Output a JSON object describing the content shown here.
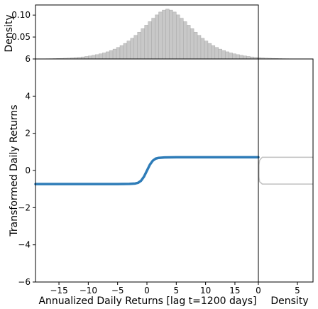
{
  "chart_data": [
    {
      "panel": "top-marginal",
      "type": "bar",
      "description_of_shape": "histogram of annualized daily returns",
      "xlim": [
        -19,
        19
      ],
      "ylim": [
        0,
        0.123
      ],
      "ylabel": "Density",
      "yticks": [
        0.05,
        0.1
      ],
      "ytick_labels": [
        "0.05",
        "0.10"
      ],
      "bar_fill": "#c8c8c8",
      "bar_edge": "#a0a0a0",
      "bars": {
        "bin_start": -19,
        "bin_width": 0.6,
        "values": [
          0.0003,
          0.0004,
          0.0005,
          0.0006,
          0.0007,
          0.0009,
          0.0011,
          0.0014,
          0.0017,
          0.0021,
          0.0026,
          0.0032,
          0.0039,
          0.0047,
          0.0057,
          0.0069,
          0.0083,
          0.0099,
          0.0117,
          0.0138,
          0.0163,
          0.0192,
          0.0225,
          0.0263,
          0.0306,
          0.0355,
          0.041,
          0.0471,
          0.0538,
          0.0612,
          0.069,
          0.077,
          0.085,
          0.093,
          0.1005,
          0.107,
          0.1115,
          0.1135,
          0.1115,
          0.107,
          0.1005,
          0.093,
          0.085,
          0.077,
          0.069,
          0.0612,
          0.0538,
          0.0471,
          0.041,
          0.0355,
          0.0306,
          0.0263,
          0.0225,
          0.0192,
          0.0163,
          0.0138,
          0.0117,
          0.0099,
          0.0083,
          0.0069,
          0.0057,
          0.0047,
          0.0039,
          0.0032,
          0.0026,
          0.0021,
          0.0017,
          0.0014,
          0.0011,
          0.0009,
          0.0007,
          0.0006,
          0.0005
        ]
      }
    },
    {
      "panel": "main",
      "type": "line",
      "xlabel": "Annualized Daily Returns [lag t=1200 days]",
      "ylabel": "Transformed Daily Returns",
      "xlim": [
        -19,
        19
      ],
      "ylim": [
        -6,
        6
      ],
      "xticks": [
        -15,
        -10,
        -5,
        0,
        5,
        10,
        15
      ],
      "xtick_labels": [
        "−15",
        "−10",
        "−5",
        "0",
        "5",
        "10",
        "15"
      ],
      "yticks": [
        -6,
        -4,
        -2,
        0,
        2,
        4,
        6
      ],
      "ytick_labels": [
        "−6",
        "−4",
        "−2",
        "0",
        "2",
        "4",
        "6"
      ],
      "line_color": "#2e7cb8",
      "series": [
        {
          "x": [
            -19,
            -10,
            -5,
            -3,
            -2,
            -1.5,
            -1,
            -0.5,
            0,
            0.5,
            1,
            1.5,
            2,
            3,
            5,
            10,
            19
          ],
          "y": [
            -0.73,
            -0.73,
            -0.73,
            -0.72,
            -0.7,
            -0.66,
            -0.55,
            -0.33,
            -0.01,
            0.31,
            0.53,
            0.64,
            0.68,
            0.7,
            0.71,
            0.71,
            0.71
          ]
        }
      ]
    },
    {
      "panel": "right-marginal",
      "type": "line",
      "xlabel": "Density",
      "xlim": [
        0,
        7
      ],
      "xticks": [
        0,
        5
      ],
      "xtick_labels": [
        "0",
        "5"
      ],
      "ylim": [
        -6,
        6
      ],
      "line_color": "#c0c0c0",
      "series": [
        {
          "x": [
            7,
            0.5,
            0.15,
            0.08,
            0.08,
            0.15,
            0.5,
            7
          ],
          "y": [
            0.71,
            0.71,
            0.55,
            0.3,
            -0.35,
            -0.6,
            -0.73,
            -0.73
          ]
        }
      ]
    }
  ]
}
